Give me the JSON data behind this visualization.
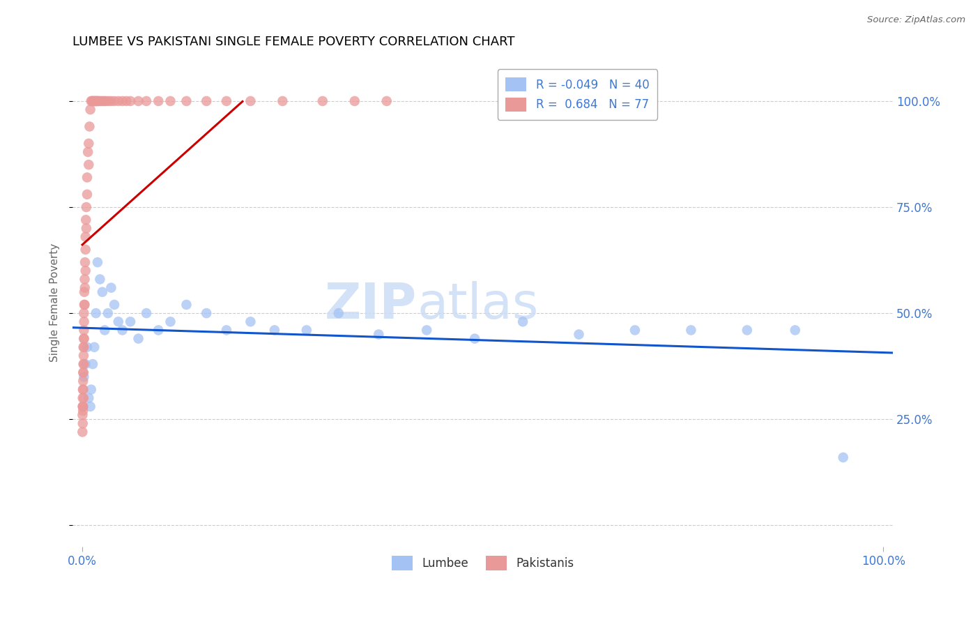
{
  "title": "LUMBEE VS PAKISTANI SINGLE FEMALE POVERTY CORRELATION CHART",
  "source": "Source: ZipAtlas.com",
  "ylabel": "Single Female Poverty",
  "lumbee_color": "#a4c2f4",
  "pakistani_color": "#ea9999",
  "lumbee_line_color": "#1155cc",
  "pakistani_line_color": "#cc0000",
  "watermark_zip": "ZIP",
  "watermark_atlas": "atlas",
  "lumbee_x": [
    0.002,
    0.004,
    0.006,
    0.008,
    0.01,
    0.011,
    0.013,
    0.015,
    0.017,
    0.019,
    0.022,
    0.025,
    0.028,
    0.032,
    0.036,
    0.04,
    0.045,
    0.05,
    0.06,
    0.07,
    0.08,
    0.095,
    0.11,
    0.13,
    0.155,
    0.18,
    0.21,
    0.24,
    0.28,
    0.32,
    0.37,
    0.43,
    0.49,
    0.55,
    0.62,
    0.69,
    0.76,
    0.83,
    0.89,
    0.95
  ],
  "lumbee_y": [
    0.35,
    0.38,
    0.42,
    0.3,
    0.28,
    0.32,
    0.38,
    0.42,
    0.5,
    0.62,
    0.58,
    0.55,
    0.46,
    0.5,
    0.56,
    0.52,
    0.48,
    0.46,
    0.48,
    0.44,
    0.5,
    0.46,
    0.48,
    0.52,
    0.5,
    0.46,
    0.48,
    0.46,
    0.46,
    0.5,
    0.45,
    0.46,
    0.44,
    0.48,
    0.45,
    0.46,
    0.46,
    0.46,
    0.46,
    0.16
  ],
  "pakistani_x": [
    0.0002,
    0.0003,
    0.0004,
    0.0005,
    0.0006,
    0.0007,
    0.0008,
    0.0009,
    0.001,
    0.001,
    0.001,
    0.0012,
    0.0013,
    0.0014,
    0.0015,
    0.0016,
    0.0017,
    0.0018,
    0.0019,
    0.002,
    0.002,
    0.002,
    0.0022,
    0.0023,
    0.0024,
    0.0025,
    0.003,
    0.003,
    0.0032,
    0.0034,
    0.004,
    0.004,
    0.004,
    0.0045,
    0.005,
    0.005,
    0.006,
    0.006,
    0.007,
    0.008,
    0.008,
    0.009,
    0.01,
    0.011,
    0.012,
    0.013,
    0.014,
    0.015,
    0.016,
    0.017,
    0.018,
    0.019,
    0.02,
    0.022,
    0.024,
    0.026,
    0.028,
    0.03,
    0.033,
    0.036,
    0.04,
    0.045,
    0.05,
    0.055,
    0.06,
    0.07,
    0.08,
    0.095,
    0.11,
    0.13,
    0.155,
    0.18,
    0.21,
    0.25,
    0.3,
    0.34,
    0.38
  ],
  "pakistani_y": [
    0.22,
    0.26,
    0.28,
    0.3,
    0.24,
    0.32,
    0.28,
    0.27,
    0.34,
    0.28,
    0.36,
    0.32,
    0.38,
    0.42,
    0.36,
    0.4,
    0.3,
    0.44,
    0.38,
    0.46,
    0.42,
    0.5,
    0.48,
    0.44,
    0.52,
    0.55,
    0.58,
    0.52,
    0.56,
    0.62,
    0.65,
    0.6,
    0.68,
    0.72,
    0.7,
    0.75,
    0.78,
    0.82,
    0.88,
    0.85,
    0.9,
    0.94,
    0.98,
    1.0,
    1.0,
    1.0,
    1.0,
    1.0,
    1.0,
    1.0,
    1.0,
    1.0,
    1.0,
    1.0,
    1.0,
    1.0,
    1.0,
    1.0,
    1.0,
    1.0,
    1.0,
    1.0,
    1.0,
    1.0,
    1.0,
    1.0,
    1.0,
    1.0,
    1.0,
    1.0,
    1.0,
    1.0,
    1.0,
    1.0,
    1.0,
    1.0,
    1.0
  ],
  "xlim": [
    -0.012,
    1.012
  ],
  "ylim": [
    -0.05,
    1.1
  ],
  "yticks": [
    0.0,
    0.25,
    0.5,
    0.75,
    1.0
  ],
  "ytick_labels_right": [
    "",
    "25.0%",
    "50.0%",
    "75.0%",
    "100.0%"
  ],
  "xtick_left_label": "0.0%",
  "xtick_right_label": "100.0%",
  "legend_r1": "R = -0.049",
  "legend_n1": "N = 40",
  "legend_r2": "R =  0.684",
  "legend_n2": "N = 77",
  "bottom_legend_lumbee": "Lumbee",
  "bottom_legend_pak": "Pakistanis"
}
